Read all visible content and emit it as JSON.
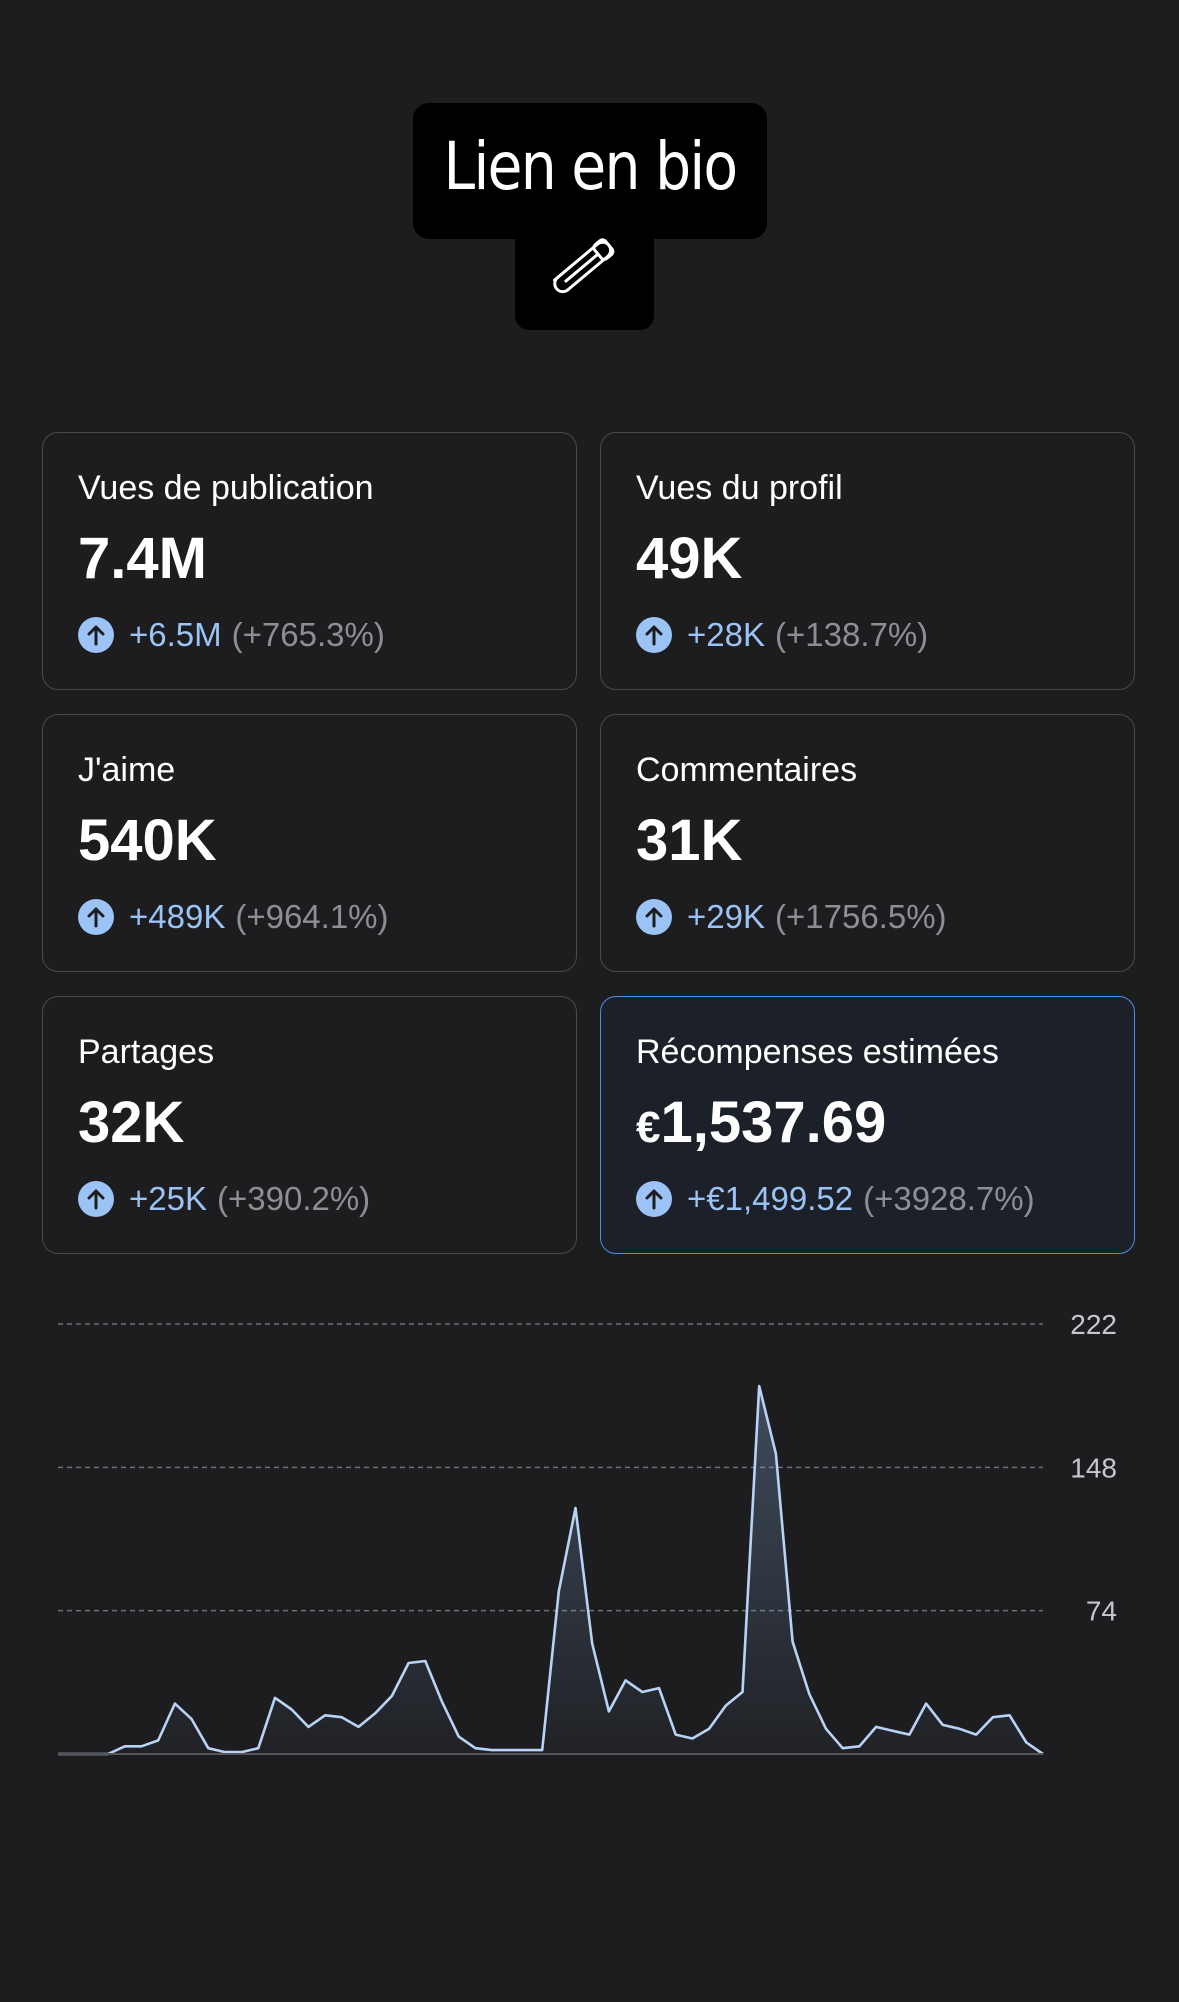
{
  "sticker": {
    "text": "Lien en bio",
    "icon": "safety-pin-icon"
  },
  "cards": [
    {
      "label": "Vues de publication",
      "value": "7.4M",
      "delta": "+6.5M",
      "percent": "(+765.3%)"
    },
    {
      "label": "Vues du profil",
      "value": "49K",
      "delta": "+28K",
      "percent": "(+138.7%)"
    },
    {
      "label": "J'aime",
      "value": "540K",
      "delta": "+489K",
      "percent": "(+964.1%)"
    },
    {
      "label": "Commentaires",
      "value": "31K",
      "delta": "+29K",
      "percent": "(+1756.5%)"
    },
    {
      "label": "Partages",
      "value": "32K",
      "delta": "+25K",
      "percent": "(+390.2%)"
    },
    {
      "label": "Récompenses estimées",
      "value_currency": "€",
      "value": "1,537.69",
      "delta": "+€1,499.52",
      "percent": "(+3928.7%)"
    }
  ],
  "colors": {
    "accent": "#9cc3f5",
    "highlight_border": "#4b8fe6",
    "background": "#1d1d1f"
  },
  "chart_data": {
    "type": "area",
    "y_ticks": [
      74,
      148,
      222
    ],
    "ylim": [
      0,
      222
    ],
    "grid": true,
    "values": [
      0,
      0,
      0,
      0,
      4,
      4,
      7,
      26,
      18,
      3,
      1,
      1,
      3,
      29,
      23,
      14,
      20,
      19,
      14,
      21,
      30,
      47,
      48,
      27,
      9,
      3,
      2,
      2,
      2,
      2,
      84,
      127,
      57,
      22,
      38,
      32,
      34,
      10,
      8,
      13,
      25,
      32,
      190,
      155,
      58,
      31,
      13,
      3,
      4,
      14,
      12,
      10,
      26,
      15,
      13,
      10,
      19,
      20,
      6,
      0
    ]
  }
}
